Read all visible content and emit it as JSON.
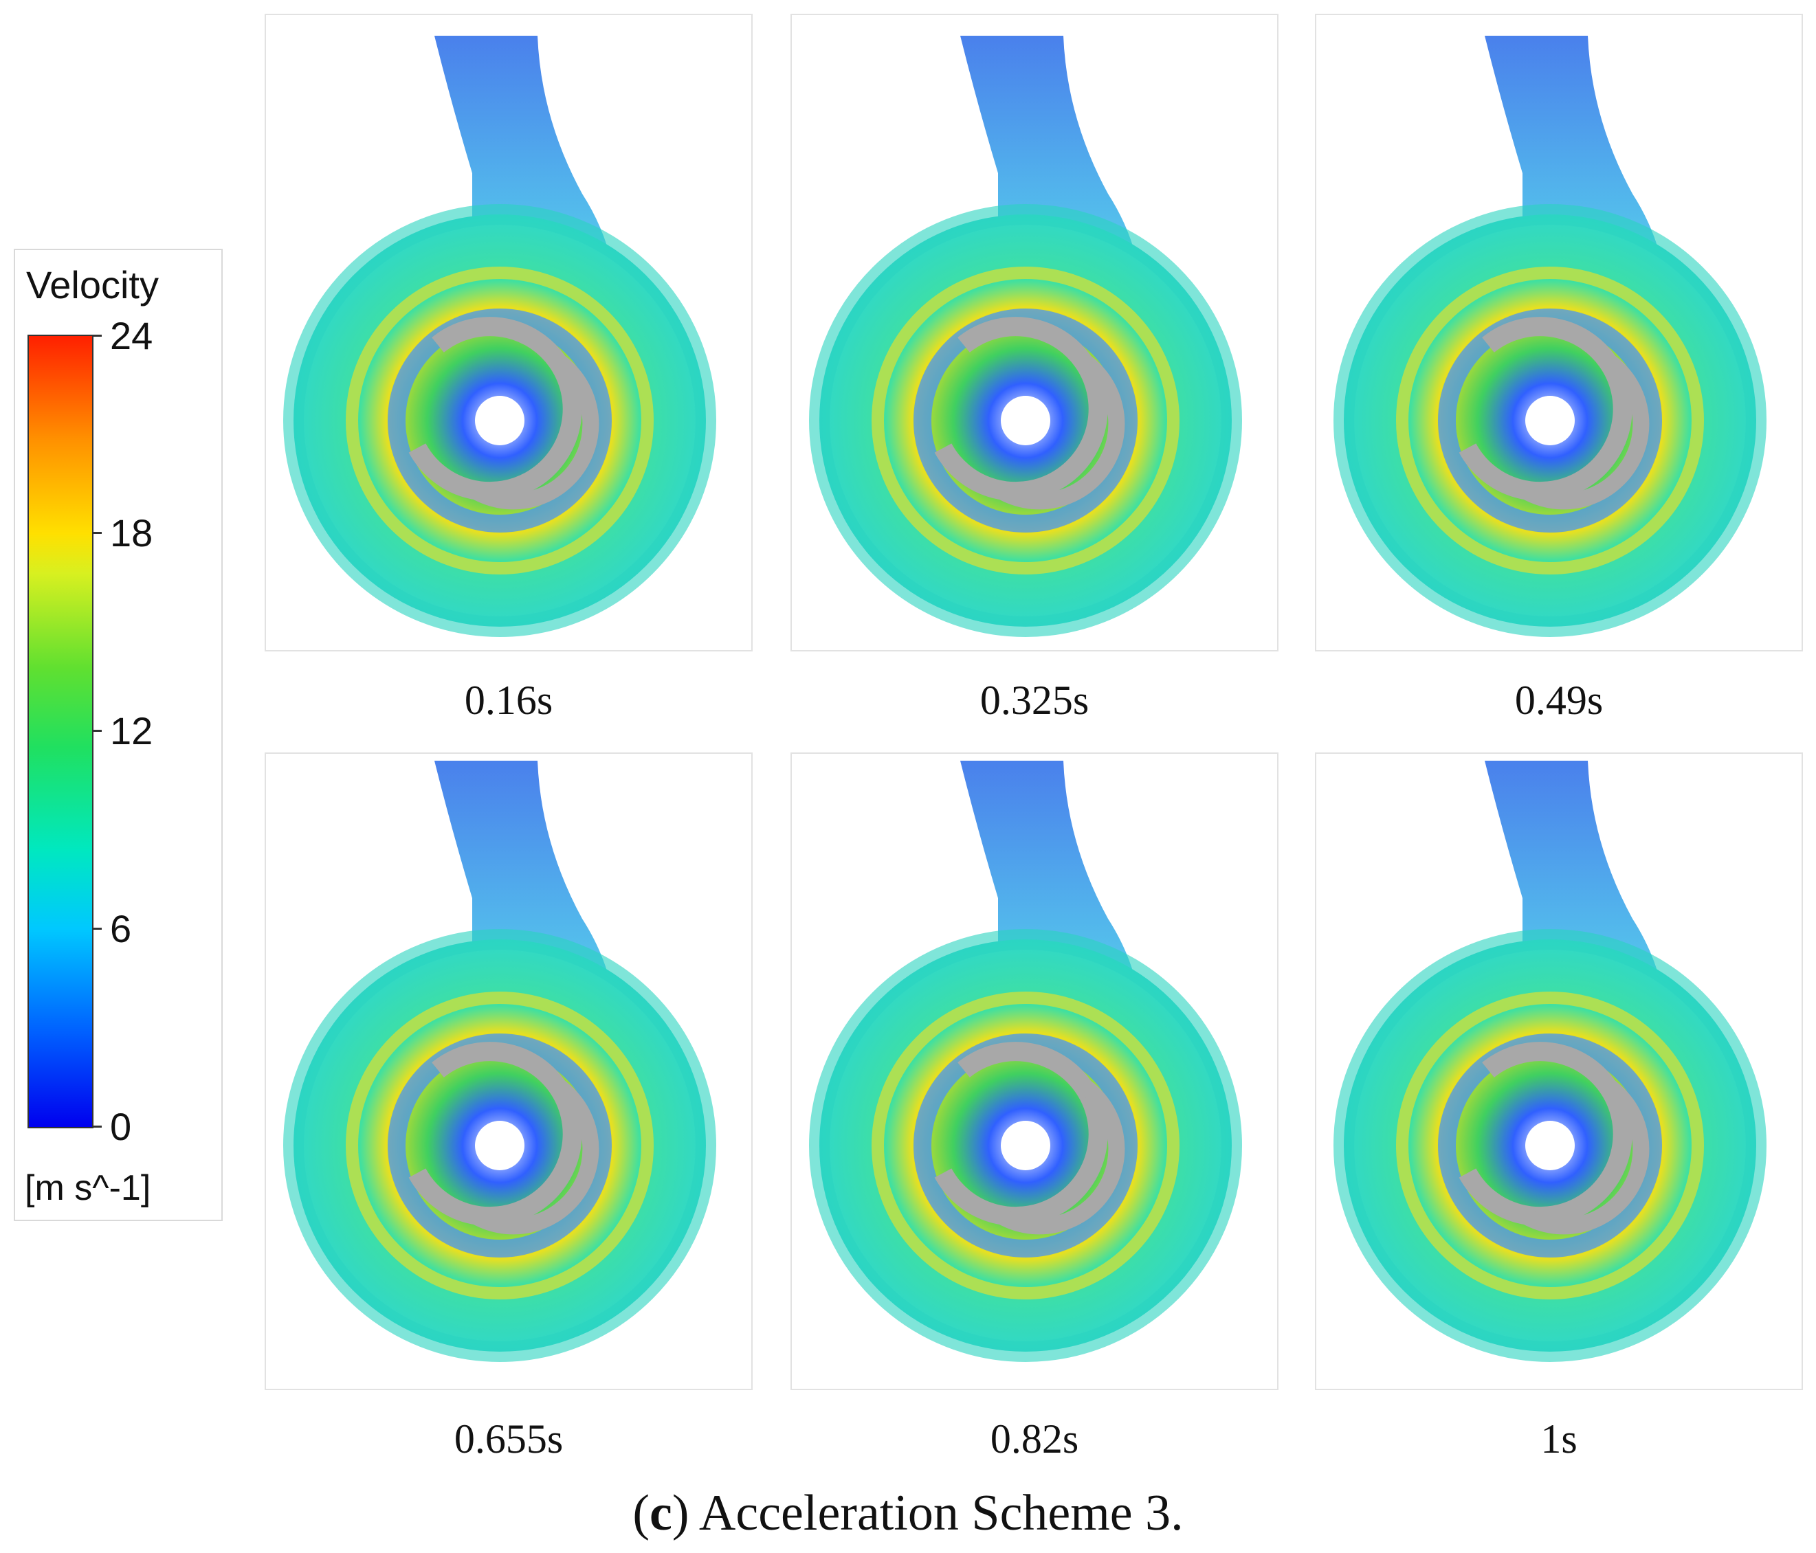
{
  "legend": {
    "title": "Velocity",
    "ticks": [
      "24",
      "18",
      "12",
      "6",
      "0"
    ],
    "unit": "[m s^-1]",
    "range": [
      0,
      24
    ]
  },
  "panels": [
    {
      "time": "0.16s"
    },
    {
      "time": "0.325s"
    },
    {
      "time": "0.49s"
    },
    {
      "time": "0.655s"
    },
    {
      "time": "0.82s"
    },
    {
      "time": "1s"
    }
  ],
  "figure_caption": {
    "letter": "c",
    "text": "Acceleration Scheme 3."
  }
}
